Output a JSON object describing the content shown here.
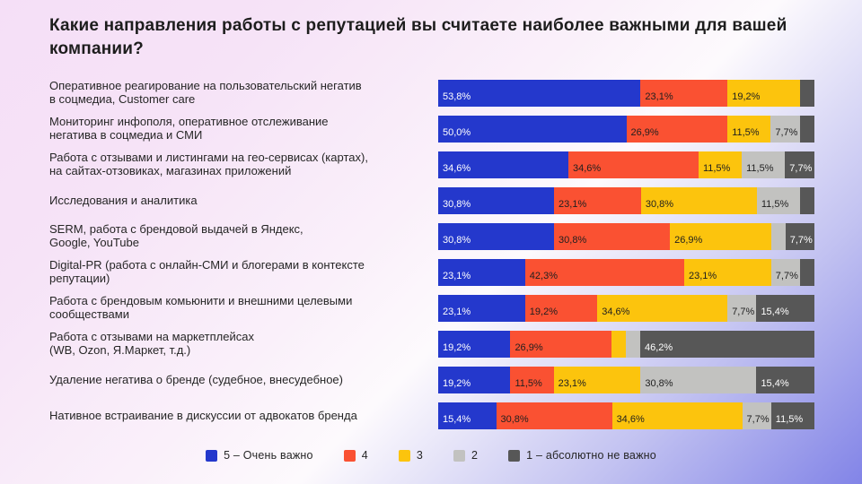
{
  "title": "Какие направления работы с репутацией вы считаете наиболее важными для вашей компании?",
  "colors": {
    "background_top_left": "#f5dff7",
    "background_bottom_right": "#8284e7",
    "title_text": "#1d1d1d",
    "rating_5": "#2438cc",
    "rating_4": "#fa5132",
    "rating_3": "#fcc40d",
    "rating_2": "#c2c2c0",
    "rating_1": "#575757"
  },
  "chart_data": {
    "type": "bar",
    "stacked": true,
    "orientation": "horizontal",
    "value_unit": "%",
    "xlim": [
      0,
      100
    ],
    "grid": false,
    "legend_position": "bottom-center",
    "title": "Какие направления работы с репутацией вы считаете наиболее важными для вашей компании?",
    "categories": [
      "Оперативное реагирование на пользовательский негатив\nв соцмедиа, Customer care",
      "Мониторинг инфополя, оперативное отслеживание\nнегатива в соцмедиа и СМИ",
      "Работа с отзывами и листингами на гео-сервисах (картах),\nна сайтах-отзовиках, магазинах приложений",
      "Исследования и аналитика",
      "SERM, работа с брендовой выдачей в Яндекс,\nGoogle, YouTube",
      "Digital-PR (работа с онлайн-СМИ и блогерами в контексте\nрепутации)",
      "Работа с брендовым комьюнити и внешними целевыми\nсообществами",
      "Работа с отзывами на маркетплейсах\n(WB, Ozon, Я.Маркет, т.д.)",
      "Удаление негатива о бренде (судебное, внесудебное)",
      "Нативное встраивание в дискуссии от адвокатов бренда"
    ],
    "series": [
      {
        "name": "5 – Очень важно",
        "color": "#2438cc",
        "text_color": "#ffffff",
        "values": [
          53.8,
          50.0,
          34.6,
          30.8,
          30.8,
          23.1,
          23.1,
          19.2,
          19.2,
          15.4
        ],
        "display_labels": [
          "53,8%",
          "50,0%",
          "34,6%",
          "30,8%",
          "30,8%",
          "23,1%",
          "23,1%",
          "19,2%",
          "19,2%",
          "15,4%"
        ]
      },
      {
        "name": "4",
        "color": "#fa5132",
        "text_color": "#1f1f1f",
        "values": [
          23.1,
          26.9,
          34.6,
          23.1,
          30.8,
          42.3,
          19.2,
          26.9,
          11.5,
          30.8
        ],
        "display_labels": [
          "23,1%",
          "26,9%",
          "34,6%",
          "23,1%",
          "30,8%",
          "42,3%",
          "19,2%",
          "26,9%",
          "11,5%",
          "30,8%"
        ]
      },
      {
        "name": "3",
        "color": "#fcc40d",
        "text_color": "#1f1f1f",
        "values": [
          19.2,
          11.5,
          11.5,
          30.8,
          26.9,
          23.1,
          34.6,
          3.8,
          23.1,
          34.6
        ],
        "display_labels": [
          "19,2%",
          "11,5%",
          "11,5%",
          "30,8%",
          "26,9%",
          "23,1%",
          "34,6%",
          "",
          "23,1%",
          "34,6%"
        ]
      },
      {
        "name": "2",
        "color": "#c2c2c0",
        "text_color": "#1f1f1f",
        "values": [
          0,
          7.7,
          11.5,
          11.5,
          3.8,
          7.7,
          7.7,
          3.8,
          30.8,
          7.7
        ],
        "display_labels": [
          "",
          "7,7%",
          "11,5%",
          "11,5%",
          "",
          "7,7%",
          "7,7%",
          "",
          "30,8%",
          "7,7%"
        ]
      },
      {
        "name": "1 – абсолютно не важно",
        "color": "#575757",
        "text_color": "#ffffff",
        "values": [
          3.8,
          3.8,
          7.7,
          3.8,
          7.7,
          3.8,
          15.4,
          46.2,
          15.4,
          11.5
        ],
        "display_labels": [
          "",
          "",
          "7,7%",
          "",
          "7,7%",
          "",
          "15,4%",
          "46,2%",
          "15,4%",
          "11,5%"
        ]
      }
    ]
  }
}
